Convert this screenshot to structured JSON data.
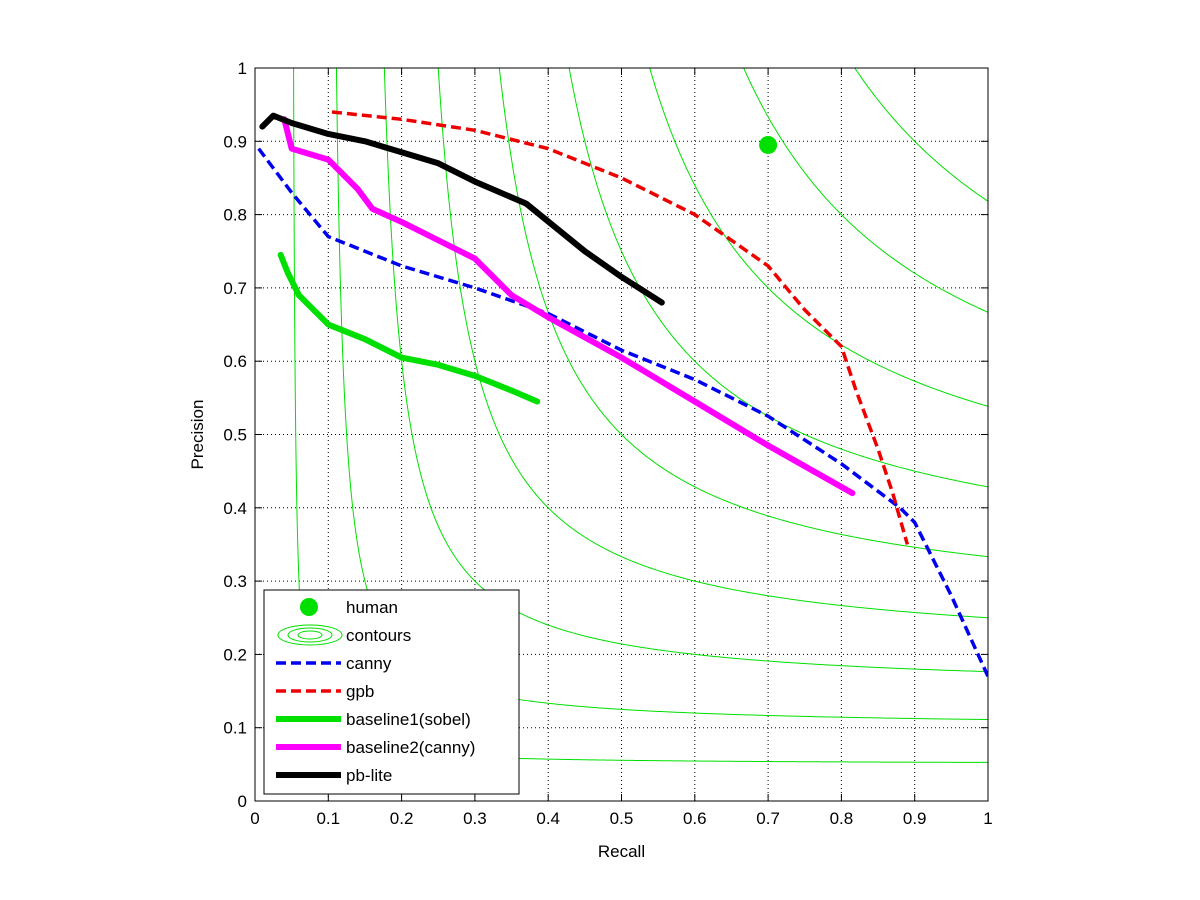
{
  "chart_data": {
    "type": "line",
    "title": "",
    "xlabel": "Recall",
    "ylabel": "Precision",
    "xlim": [
      0,
      1
    ],
    "ylim": [
      0,
      1
    ],
    "x_ticks": [
      0,
      0.1,
      0.2,
      0.3,
      0.4,
      0.5,
      0.6,
      0.7,
      0.8,
      0.9,
      1
    ],
    "x_tick_labels": [
      "0",
      "0.1",
      "0.2",
      "0.3",
      "0.4",
      "0.5",
      "0.6",
      "0.7",
      "0.8",
      "0.9",
      "1"
    ],
    "y_ticks": [
      0,
      0.1,
      0.2,
      0.3,
      0.4,
      0.5,
      0.6,
      0.7,
      0.8,
      0.9,
      1
    ],
    "y_tick_labels": [
      "0",
      "0.1",
      "0.2",
      "0.3",
      "0.4",
      "0.5",
      "0.6",
      "0.7",
      "0.8",
      "0.9",
      "1"
    ],
    "grid": "dotted",
    "legend_position": "bottom-left",
    "contours": {
      "color": "#00e000",
      "f_levels": [
        0.1,
        0.2,
        0.3,
        0.4,
        0.5,
        0.6,
        0.7,
        0.8,
        0.9
      ]
    },
    "human": {
      "name": "human",
      "x": 0.7,
      "y": 0.895,
      "color": "#00e000"
    },
    "series": [
      {
        "name": "canny",
        "color": "#0000ee",
        "style": "dashed",
        "x": [
          0.005,
          0.05,
          0.1,
          0.2,
          0.3,
          0.4,
          0.5,
          0.6,
          0.7,
          0.8,
          0.88,
          0.9,
          0.95,
          1.0
        ],
        "y": [
          0.89,
          0.83,
          0.77,
          0.73,
          0.7,
          0.665,
          0.615,
          0.575,
          0.525,
          0.46,
          0.4,
          0.38,
          0.28,
          0.17
        ]
      },
      {
        "name": "gpb",
        "color": "#ee0000",
        "style": "dashed",
        "x": [
          0.105,
          0.2,
          0.3,
          0.4,
          0.5,
          0.6,
          0.7,
          0.75,
          0.8,
          0.82,
          0.85,
          0.87,
          0.89
        ],
        "y": [
          0.94,
          0.93,
          0.915,
          0.89,
          0.85,
          0.8,
          0.73,
          0.67,
          0.62,
          0.56,
          0.48,
          0.42,
          0.35
        ]
      },
      {
        "name": "baseline1(sobel)",
        "color": "#00e000",
        "style": "solid",
        "x": [
          0.035,
          0.045,
          0.06,
          0.1,
          0.15,
          0.2,
          0.25,
          0.3,
          0.35,
          0.385
        ],
        "y": [
          0.745,
          0.72,
          0.69,
          0.65,
          0.63,
          0.605,
          0.595,
          0.58,
          0.56,
          0.545
        ]
      },
      {
        "name": "baseline2(canny)",
        "color": "#ff00ff",
        "style": "solid",
        "x": [
          0.04,
          0.05,
          0.1,
          0.14,
          0.16,
          0.2,
          0.25,
          0.3,
          0.35,
          0.4,
          0.5,
          0.6,
          0.7,
          0.815
        ],
        "y": [
          0.93,
          0.89,
          0.875,
          0.835,
          0.808,
          0.79,
          0.765,
          0.74,
          0.69,
          0.66,
          0.605,
          0.545,
          0.485,
          0.42
        ]
      },
      {
        "name": "pb-lite",
        "color": "#000000",
        "style": "solid",
        "x": [
          0.01,
          0.025,
          0.05,
          0.1,
          0.15,
          0.2,
          0.25,
          0.3,
          0.37,
          0.45,
          0.5,
          0.555
        ],
        "y": [
          0.92,
          0.935,
          0.925,
          0.91,
          0.9,
          0.885,
          0.87,
          0.845,
          0.815,
          0.75,
          0.715,
          0.68
        ]
      }
    ]
  }
}
